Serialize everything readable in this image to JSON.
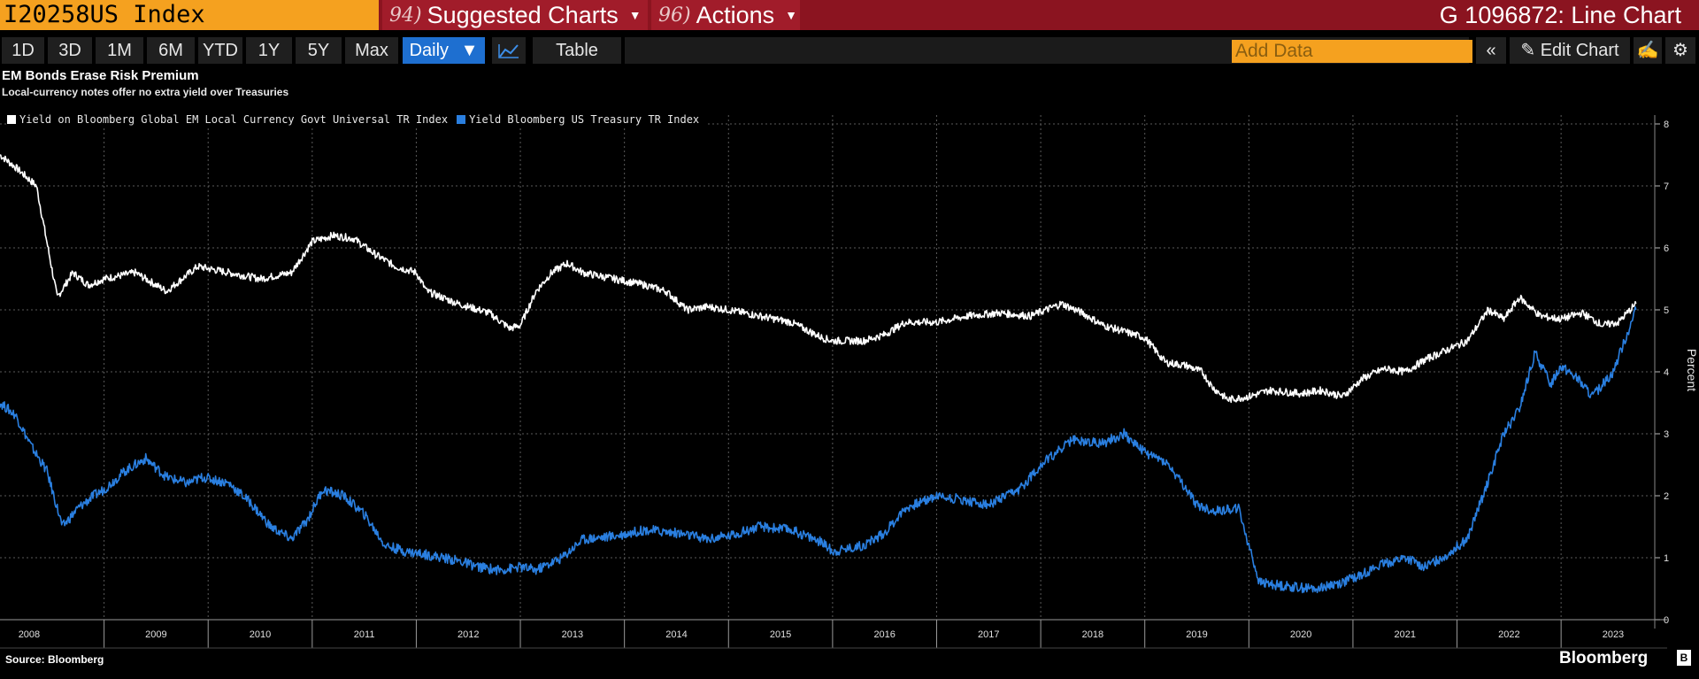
{
  "header": {
    "ticker": "I20258US Index",
    "suggested_num": "94)",
    "suggested_label": "Suggested Charts",
    "actions_num": "96)",
    "actions_label": "Actions",
    "chart_id": "G 1096872: Line Chart"
  },
  "toolbar": {
    "ranges": [
      "1D",
      "3D",
      "1M",
      "6M",
      "YTD",
      "1Y",
      "5Y",
      "Max"
    ],
    "frequency": "Daily",
    "table_label": "Table",
    "add_data_placeholder": "Add Data",
    "edit_chart_label": "Edit Chart"
  },
  "footer": {
    "source": "Source: Bloomberg",
    "brand": "Bloomberg"
  },
  "colors": {
    "em_series": "#ffffff",
    "ust_series": "#2a7fe0",
    "top_bar": "#8b1420",
    "ticker_bg": "#f5a11f",
    "accent_blue": "#1e6fd0"
  },
  "chart_data": {
    "type": "line",
    "title": "EM Bonds Erase Risk Premium",
    "subtitle": "Local-currency notes offer no extra yield over Treasuries",
    "ylabel": "Percent",
    "xlabel": "",
    "xlim": [
      2008.0,
      2023.9
    ],
    "ylim": [
      0,
      8
    ],
    "yticks": [
      "0",
      "1",
      "2",
      "3",
      "4",
      "5",
      "6",
      "7",
      "8"
    ],
    "xticks": [
      "2008",
      "2009",
      "2010",
      "2011",
      "2012",
      "2013",
      "2014",
      "2015",
      "2016",
      "2017",
      "2018",
      "2019",
      "2020",
      "2021",
      "2022",
      "2023"
    ],
    "grid": true,
    "legend_position": "top-left",
    "series": [
      {
        "name": "Yield on Bloomberg Global EM Local Currency Govt Universal TR Index",
        "color": "#ffffff",
        "x": [
          2008.0,
          2008.15,
          2008.35,
          2008.55,
          2008.7,
          2008.85,
          2009.0,
          2009.3,
          2009.6,
          2009.9,
          2010.2,
          2010.5,
          2010.8,
          2011.0,
          2011.2,
          2011.4,
          2011.6,
          2011.8,
          2012.0,
          2012.1,
          2012.4,
          2012.7,
          2012.9,
          2013.0,
          2013.15,
          2013.3,
          2013.45,
          2013.6,
          2013.9,
          2014.2,
          2014.4,
          2014.6,
          2014.8,
          2015.0,
          2015.3,
          2015.6,
          2015.9,
          2016.0,
          2016.3,
          2016.5,
          2016.7,
          2017.0,
          2017.3,
          2017.6,
          2017.9,
          2018.2,
          2018.4,
          2018.6,
          2018.8,
          2019.0,
          2019.2,
          2019.4,
          2019.55,
          2019.65,
          2019.8,
          2020.0,
          2020.2,
          2020.5,
          2020.7,
          2020.9,
          2021.1,
          2021.3,
          2021.5,
          2021.7,
          2021.9,
          2022.1,
          2022.3,
          2022.45,
          2022.6,
          2022.8,
          2023.0,
          2023.2,
          2023.4,
          2023.55,
          2023.72
        ],
        "y": [
          7.5,
          7.3,
          7.0,
          5.2,
          5.6,
          5.4,
          5.5,
          5.6,
          5.3,
          5.7,
          5.6,
          5.5,
          5.6,
          6.1,
          6.2,
          6.15,
          5.9,
          5.7,
          5.6,
          5.3,
          5.1,
          4.95,
          4.7,
          4.75,
          5.3,
          5.6,
          5.75,
          5.6,
          5.5,
          5.4,
          5.3,
          5.0,
          5.05,
          5.0,
          4.9,
          4.8,
          4.55,
          4.5,
          4.5,
          4.6,
          4.8,
          4.8,
          4.9,
          4.95,
          4.9,
          5.1,
          4.95,
          4.75,
          4.65,
          4.55,
          4.15,
          4.1,
          4.0,
          3.75,
          3.55,
          3.6,
          3.7,
          3.65,
          3.7,
          3.6,
          3.9,
          4.05,
          4.0,
          4.2,
          4.35,
          4.5,
          5.0,
          4.85,
          5.2,
          4.9,
          4.85,
          4.95,
          4.75,
          4.8,
          5.1
        ]
      },
      {
        "name": "Yield Bloomberg US Treasury TR Index",
        "color": "#2a7fe0",
        "x": [
          2008.0,
          2008.15,
          2008.3,
          2008.45,
          2008.6,
          2008.75,
          2008.9,
          2009.0,
          2009.2,
          2009.4,
          2009.6,
          2009.8,
          2009.95,
          2010.2,
          2010.4,
          2010.6,
          2010.8,
          2010.95,
          2011.1,
          2011.3,
          2011.5,
          2011.7,
          2011.9,
          2012.1,
          2012.4,
          2012.6,
          2012.8,
          2013.0,
          2013.15,
          2013.4,
          2013.6,
          2013.9,
          2014.2,
          2014.5,
          2014.8,
          2015.0,
          2015.3,
          2015.6,
          2015.9,
          2016.0,
          2016.3,
          2016.5,
          2016.7,
          2017.0,
          2017.2,
          2017.5,
          2017.8,
          2018.0,
          2018.3,
          2018.6,
          2018.8,
          2019.0,
          2019.2,
          2019.4,
          2019.5,
          2019.65,
          2019.9,
          2020.1,
          2020.3,
          2020.6,
          2020.9,
          2021.1,
          2021.3,
          2021.5,
          2021.7,
          2021.9,
          2022.1,
          2022.25,
          2022.45,
          2022.6,
          2022.75,
          2022.9,
          2023.0,
          2023.15,
          2023.3,
          2023.5,
          2023.72
        ],
        "y": [
          3.5,
          3.3,
          2.8,
          2.4,
          1.5,
          1.8,
          2.0,
          2.1,
          2.4,
          2.6,
          2.3,
          2.2,
          2.3,
          2.2,
          1.9,
          1.5,
          1.3,
          1.6,
          2.1,
          2.0,
          1.7,
          1.2,
          1.1,
          1.05,
          0.95,
          0.85,
          0.8,
          0.85,
          0.8,
          1.0,
          1.3,
          1.35,
          1.45,
          1.4,
          1.3,
          1.35,
          1.5,
          1.45,
          1.25,
          1.1,
          1.2,
          1.4,
          1.8,
          2.0,
          1.95,
          1.85,
          2.1,
          2.5,
          2.9,
          2.85,
          3.0,
          2.7,
          2.55,
          2.1,
          1.85,
          1.75,
          1.8,
          0.6,
          0.55,
          0.5,
          0.6,
          0.75,
          0.9,
          1.0,
          0.85,
          1.05,
          1.3,
          2.0,
          3.0,
          3.4,
          4.3,
          3.8,
          4.1,
          3.9,
          3.6,
          4.0,
          5.0
        ]
      }
    ]
  }
}
